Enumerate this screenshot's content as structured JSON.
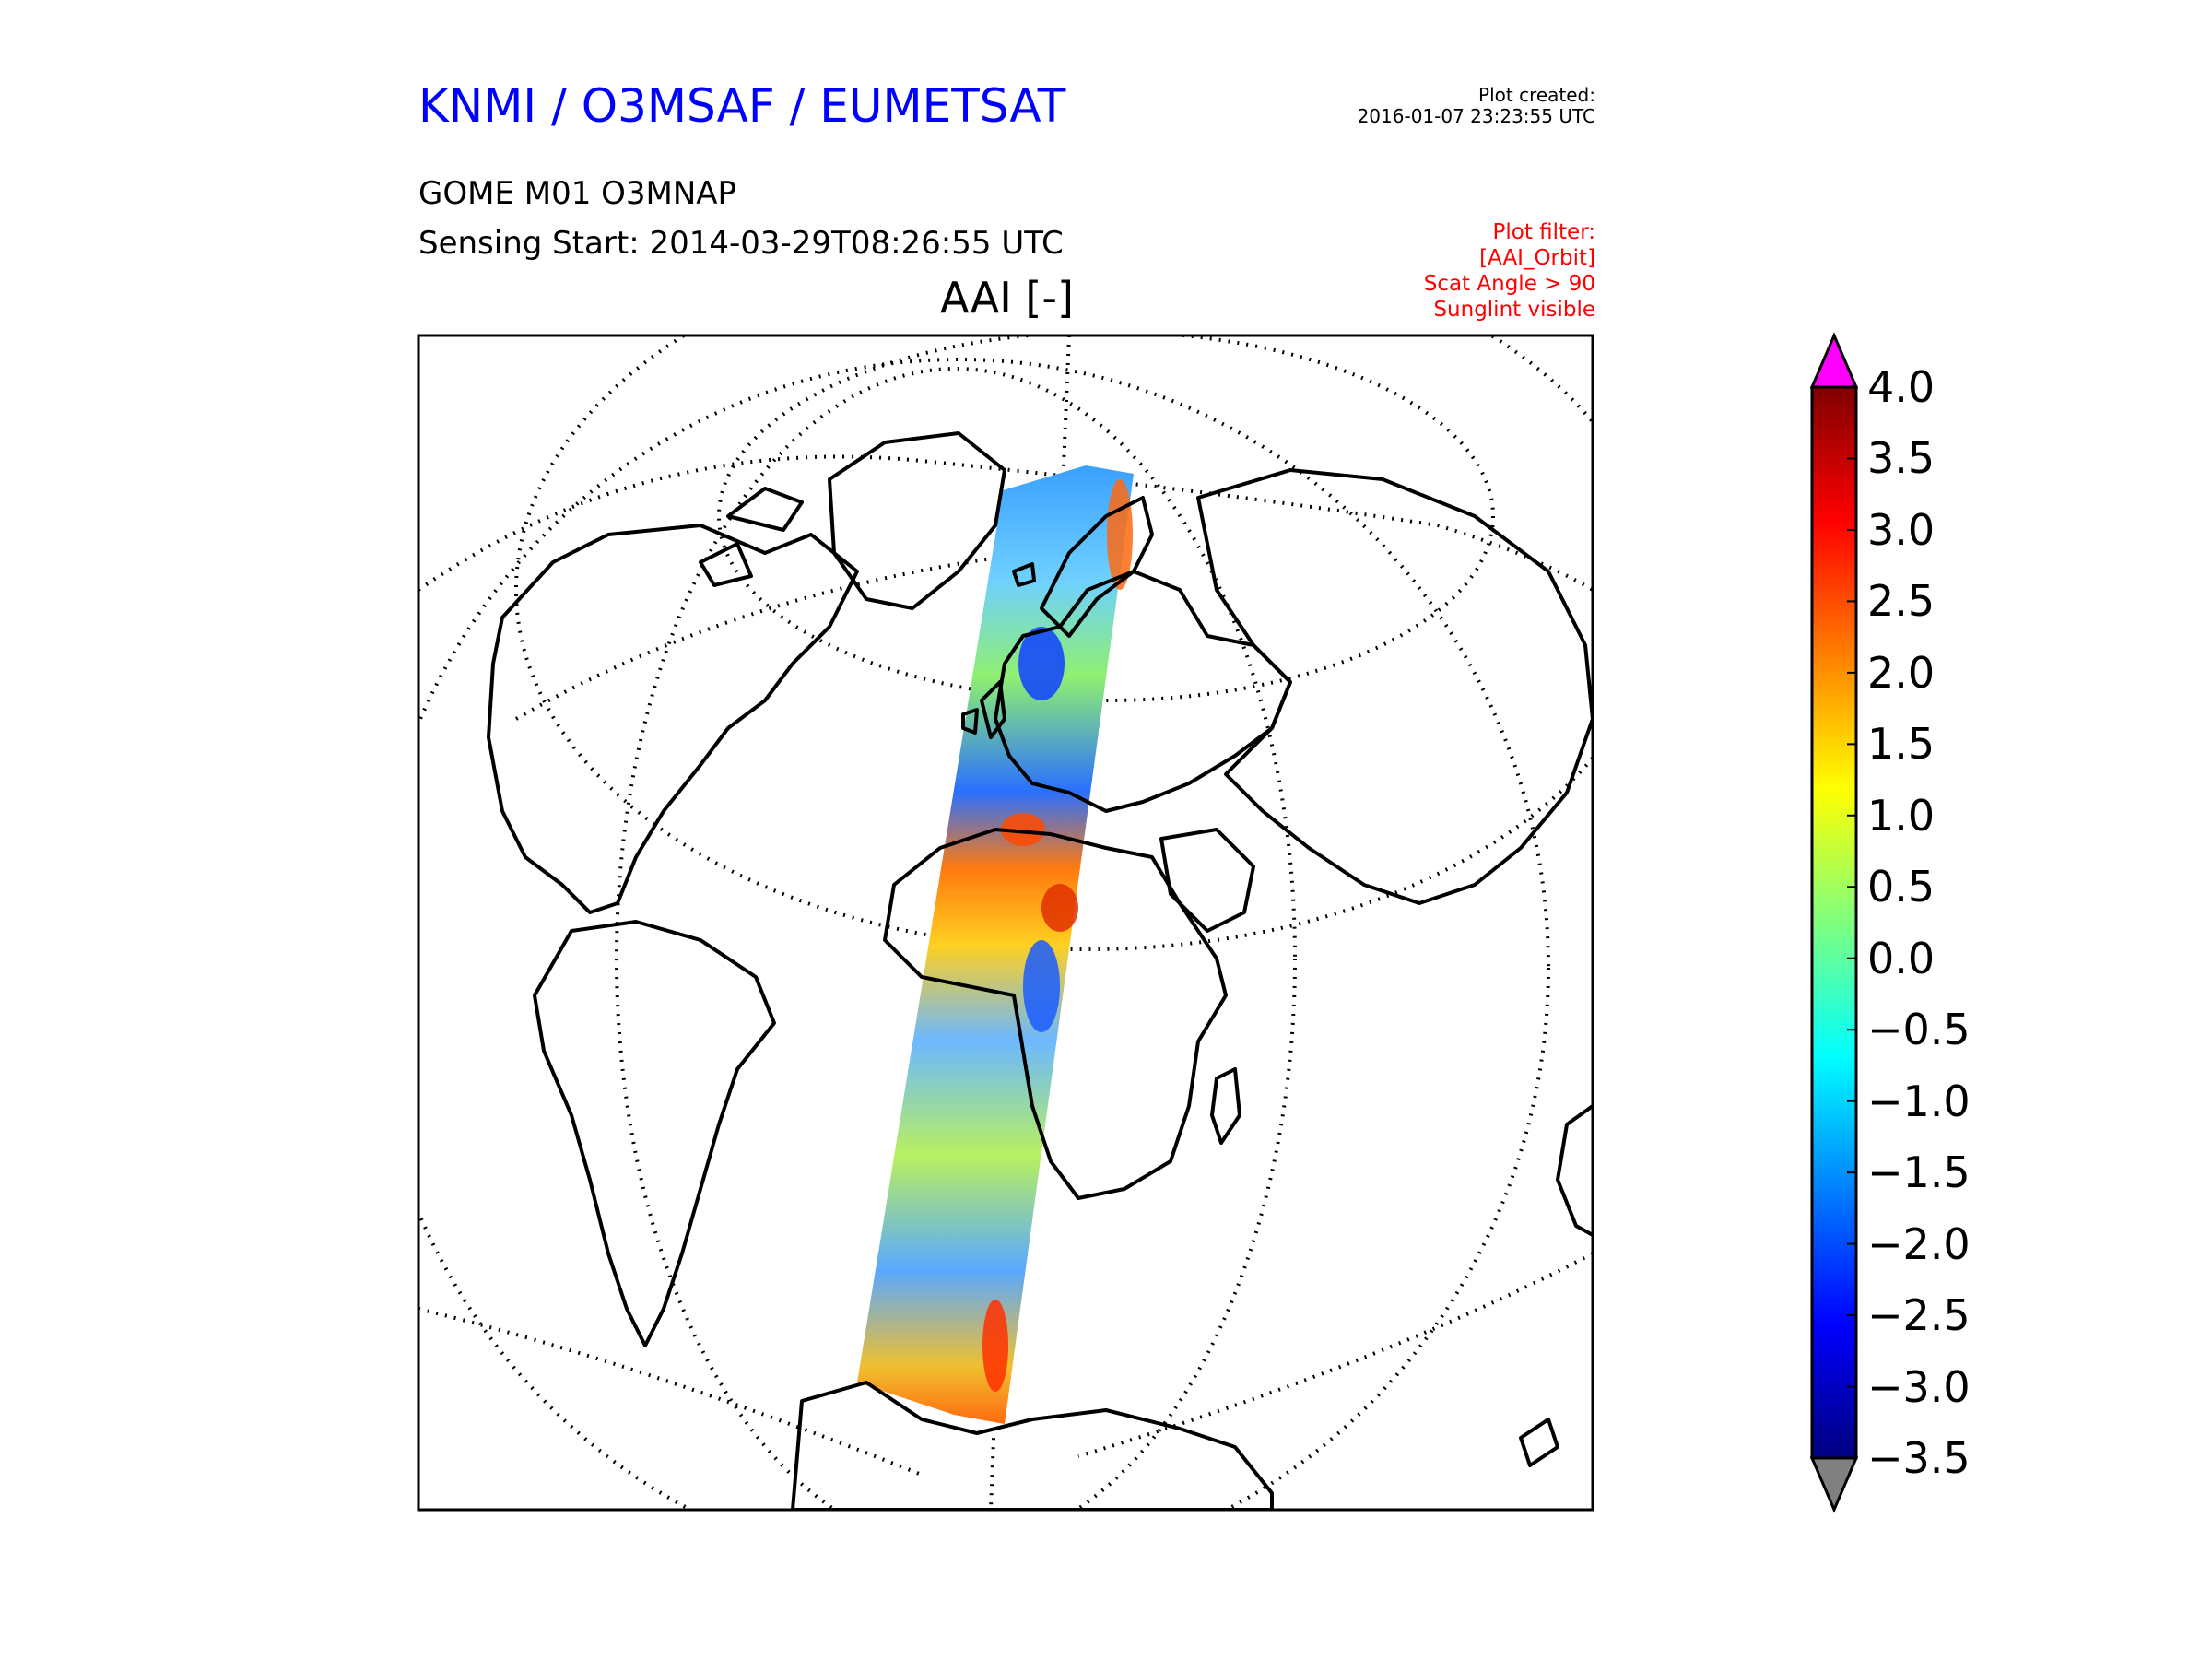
{
  "header": {
    "agency_title": "KNMI / O3MSAF / EUMETSAT",
    "plot_created_label": "Plot created:",
    "plot_created_time": "2016-01-07 23:23:55 UTC",
    "product": "GOME M01 O3MNAP",
    "sensing_start": "Sensing Start: 2014-03-29T08:26:55 UTC"
  },
  "filter": {
    "label": "Plot filter:",
    "lines": [
      "[AAI_Orbit]",
      "Scat Angle > 90",
      "Sunglint visible"
    ]
  },
  "map": {
    "title": "AAI [-]",
    "projection": "orthographic",
    "swath": "single GOME orbit swath over Europe, Africa and South Atlantic"
  },
  "colorbar": {
    "min": -3.5,
    "max": 4.0,
    "ticks": [
      "4.0",
      "3.5",
      "3.0",
      "2.5",
      "2.0",
      "1.5",
      "1.0",
      "0.5",
      "0.0",
      "−0.5",
      "−1.0",
      "−1.5",
      "−2.0",
      "−2.5",
      "−3.0",
      "−3.5"
    ],
    "colormap": [
      "#00007f",
      "#0000ff",
      "#007fff",
      "#00ffff",
      "#7fff7f",
      "#ffff00",
      "#ff7f00",
      "#ff0000",
      "#7f0000"
    ],
    "over_color": "#ff00ff",
    "under_color": "#808080"
  }
}
